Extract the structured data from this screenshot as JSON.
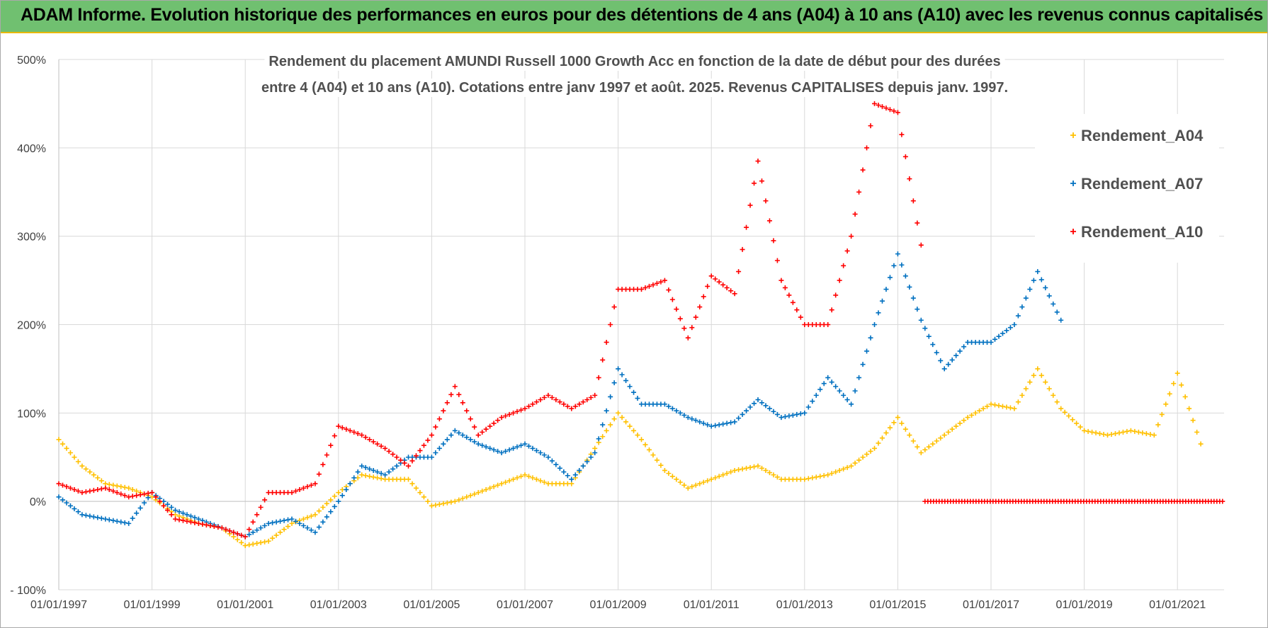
{
  "header": {
    "title": "ADAM Informe. Evolution historique des performances en euros pour des détentions de 4 ans (A04) à 10 ans (A10) avec les revenus connus capitalisés"
  },
  "chart_data": {
    "type": "scatter",
    "title": "Rendement du placement AMUNDI Russell 1000 Growth Acc en fonction de la date de début pour des durées entre 4 (A04) et 10 ans (A10).  Cotations entre janv 1997 et août. 2025. Revenus CAPITALISES depuis janv. 1997.",
    "title_lines": [
      "Rendement du placement AMUNDI Russell 1000 Growth Acc en fonction de la date de début pour des durées",
      "entre 4 (A04) et 10 ans (A10).  Cotations entre janv 1997 et août. 2025. Revenus CAPITALISES depuis janv. 1997."
    ],
    "xlabel": "",
    "ylabel": "",
    "x_range": [
      "1997-01-01",
      "2022-01-01"
    ],
    "ylim": [
      -100,
      500
    ],
    "x_ticks": [
      "01/01/1997",
      "01/01/1999",
      "01/01/2001",
      "01/01/2003",
      "01/01/2005",
      "01/01/2007",
      "01/01/2009",
      "01/01/2011",
      "01/01/2013",
      "01/01/2015",
      "01/01/2017",
      "01/01/2019",
      "01/01/2021"
    ],
    "y_ticks": [
      -100,
      0,
      100,
      200,
      300,
      400,
      500
    ],
    "y_tick_labels": [
      "- 100%",
      "0%",
      "100%",
      "200%",
      "300%",
      "400%",
      "500%"
    ],
    "grid": true,
    "legend_position": "right",
    "marker": "+",
    "series": [
      {
        "name": "Rendement_A04",
        "color": "#ffc000",
        "x": [
          "1997-01",
          "1997-07",
          "1998-01",
          "1998-07",
          "1999-01",
          "1999-07",
          "2000-01",
          "2000-07",
          "2001-01",
          "2001-07",
          "2002-01",
          "2002-07",
          "2003-01",
          "2003-07",
          "2004-01",
          "2004-07",
          "2005-01",
          "2005-07",
          "2006-01",
          "2006-07",
          "2007-01",
          "2007-07",
          "2008-01",
          "2008-07",
          "2009-01",
          "2009-07",
          "2010-01",
          "2010-07",
          "2011-01",
          "2011-07",
          "2012-01",
          "2012-07",
          "2013-01",
          "2013-07",
          "2014-01",
          "2014-07",
          "2015-01",
          "2015-07",
          "2016-01",
          "2016-07",
          "2017-01",
          "2017-07",
          "2018-01",
          "2018-07",
          "2019-01",
          "2019-07",
          "2020-01",
          "2020-07",
          "2021-01",
          "2021-07"
        ],
        "values": [
          70,
          40,
          20,
          15,
          5,
          -15,
          -25,
          -30,
          -50,
          -45,
          -25,
          -15,
          10,
          30,
          25,
          25,
          -5,
          0,
          10,
          20,
          30,
          20,
          20,
          60,
          100,
          70,
          35,
          15,
          25,
          35,
          40,
          25,
          25,
          30,
          40,
          60,
          95,
          55,
          75,
          95,
          110,
          105,
          150,
          105,
          80,
          75,
          80,
          75,
          145,
          65
        ]
      },
      {
        "name": "Rendement_A07",
        "color": "#0070c0",
        "x": [
          "1997-01",
          "1997-07",
          "1998-01",
          "1998-07",
          "1999-01",
          "1999-07",
          "2000-01",
          "2000-07",
          "2001-01",
          "2001-07",
          "2002-01",
          "2002-07",
          "2003-01",
          "2003-07",
          "2004-01",
          "2004-07",
          "2005-01",
          "2005-07",
          "2006-01",
          "2006-07",
          "2007-01",
          "2007-07",
          "2008-01",
          "2008-07",
          "2009-01",
          "2009-07",
          "2010-01",
          "2010-07",
          "2011-01",
          "2011-07",
          "2012-01",
          "2012-07",
          "2013-01",
          "2013-07",
          "2014-01",
          "2014-07",
          "2015-01",
          "2015-07",
          "2016-01",
          "2016-07",
          "2017-01",
          "2017-07",
          "2018-01",
          "2018-07"
        ],
        "values": [
          5,
          -15,
          -20,
          -25,
          10,
          -10,
          -20,
          -30,
          -40,
          -25,
          -20,
          -35,
          0,
          40,
          30,
          50,
          50,
          80,
          65,
          55,
          65,
          50,
          25,
          55,
          150,
          110,
          110,
          95,
          85,
          90,
          115,
          95,
          100,
          140,
          110,
          200,
          280,
          205,
          150,
          180,
          180,
          200,
          260,
          205
        ]
      },
      {
        "name": "Rendement_A10",
        "color": "#ff0000",
        "x": [
          "1997-01",
          "1997-07",
          "1998-01",
          "1998-07",
          "1999-01",
          "1999-07",
          "2000-01",
          "2000-07",
          "2001-01",
          "2001-07",
          "2002-01",
          "2002-07",
          "2003-01",
          "2003-07",
          "2004-01",
          "2004-07",
          "2005-01",
          "2005-07",
          "2006-01",
          "2006-07",
          "2007-01",
          "2007-07",
          "2008-01",
          "2008-07",
          "2009-01",
          "2009-07",
          "2010-01",
          "2010-07",
          "2011-01",
          "2011-07",
          "2012-01",
          "2012-07",
          "2013-01",
          "2013-07",
          "2014-01",
          "2014-07",
          "2015-01",
          "2015-07"
        ],
        "values": [
          20,
          10,
          15,
          5,
          10,
          -20,
          -25,
          -30,
          -40,
          10,
          10,
          20,
          85,
          75,
          60,
          40,
          75,
          130,
          75,
          95,
          105,
          120,
          105,
          120,
          240,
          240,
          250,
          185,
          255,
          235,
          385,
          250,
          200,
          200,
          300,
          450,
          440,
          290
        ]
      },
      {
        "name": "Rendement_A10 zero segment",
        "color": "#ff0000",
        "x_start": "2015-08-01",
        "x_end": "2022-01-01",
        "value": 0
      }
    ]
  }
}
